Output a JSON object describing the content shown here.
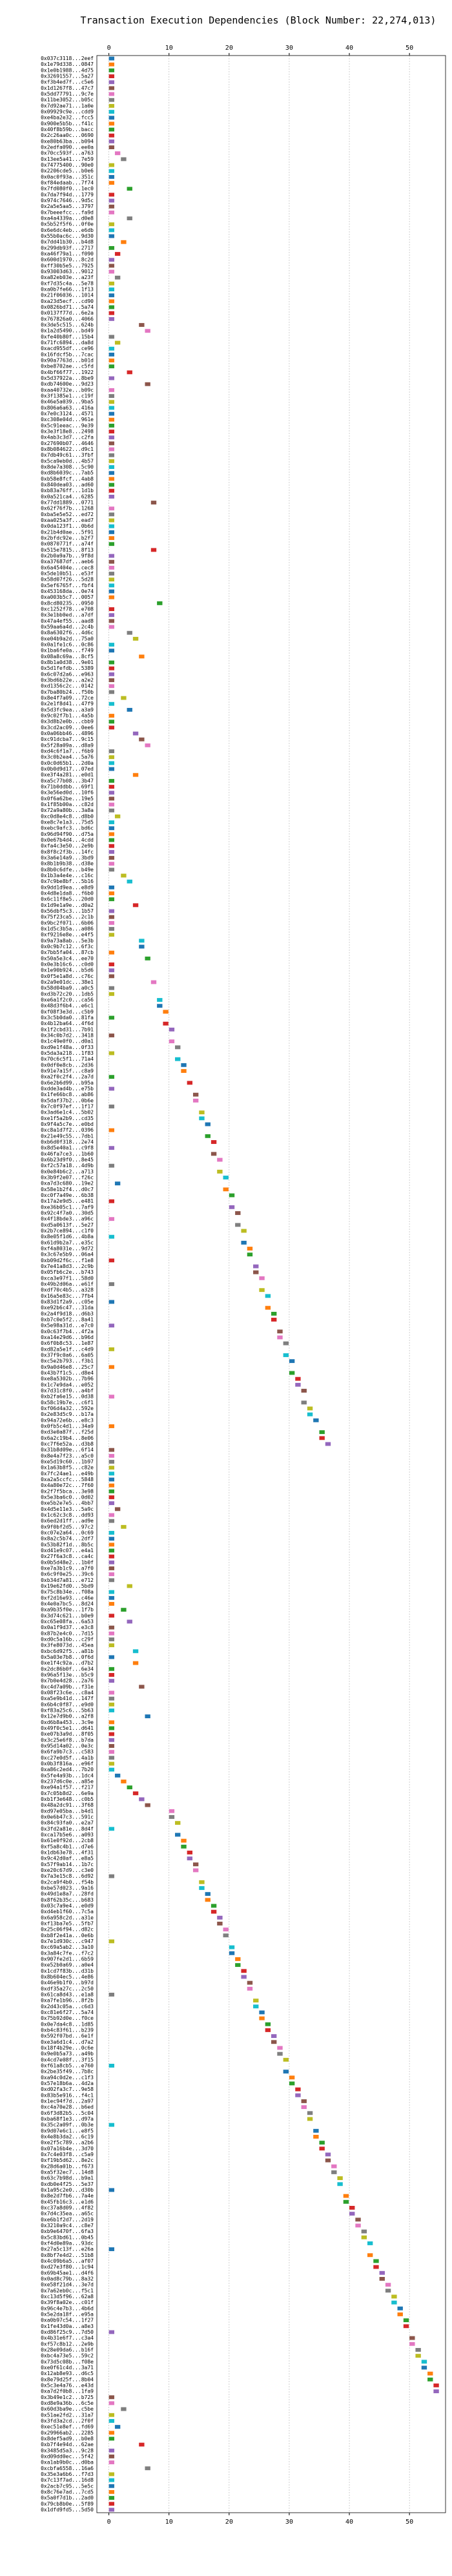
{
  "chart_data": {
    "type": "gantt",
    "title": "Transaction Execution Dependencies (Block Number: 22,274,013)",
    "xlim": [
      -2,
      56
    ],
    "xticks": [
      0,
      10,
      20,
      30,
      40,
      50
    ],
    "grid": true,
    "colors": [
      "#1f77b4",
      "#ff7f0e",
      "#2ca02c",
      "#d62728",
      "#9467bd",
      "#8c564b",
      "#e377c2",
      "#7f7f7f",
      "#bcbd22",
      "#17becf"
    ],
    "categories": [
      "0x037c3118...2eef",
      "0x1e79d338...0847",
      "0x1e0b1988...4d75",
      "0x32691557...5a27",
      "0xf3b4ed7f...c5e6",
      "0x1d1267f8...47c7",
      "0x5dd77791...9c7e",
      "0x11be3052...b05c",
      "0x7d92ae71...1a0e",
      "0x09929c9e...cdd9",
      "0xe4ba2e32...fcc5",
      "0x900e5b5b...f41c",
      "0x40f8b59b...bacc",
      "0x2c26aa0c...0690",
      "0xe80b63ba...b094",
      "0x2edfa090...ee0a",
      "0x70cc593f...a763",
      "0x13ee5a41...7e59",
      "0x74775400...90e0",
      "0x2206cde5...b0e6",
      "0x0ac0f93a...351c",
      "0xf84edaab...7f74",
      "0x7fd080f0...1ec0",
      "0x7da7f94d...1779",
      "0x974c7646...9d5c",
      "0x2a5e5aa5...3797",
      "0x7beeefcc...fa9d",
      "0xa4a4339a...d0e8",
      "0x5b52f5f6...0f0e",
      "0x6e6dc4eb...e6db",
      "0x55b0ac6c...9d30",
      "0x7dd41b30...b4d8",
      "0x299db93f...2717",
      "0xa46f79a1...f090",
      "0x600d1970...8c2d",
      "0xff30b5e5...7925",
      "0x93003d63...9012",
      "0xa82eb03e...a23f",
      "0xf7d35c4a...5e78",
      "0xa0b7fe66...1f13",
      "0x21f06036...1014",
      "0xa23d5ecf...cd90",
      "0x0826bd71...5a74",
      "0x0137f77d...6e2a",
      "0x767826a0...4066",
      "0x3de5c515...624b",
      "0x1a2d5490...bd49",
      "0xfe40b80f...15b4",
      "0x71fc6894...da8d",
      "0xacd955df...ce96",
      "0x16fdcf5b...7cac",
      "0x90a7763d...b01d",
      "0xbe8702ae...c5fd",
      "0x4bf66f77...1922",
      "0x5d37922a...8be9",
      "0xdb74600e...9d23",
      "0xaa40732e...b09c",
      "0x3f1385e1...c19f",
      "0x46e5a039...9ba5",
      "0x806a6a63...416a",
      "0x7e0c3124...4571",
      "0xc308e04d...961e",
      "0x5c91eeac...9e39",
      "0x3e3f18e8...2498",
      "0x4ab3c3d7...c2fa",
      "0x27690b07...4646",
      "0x8b084622...d9c1",
      "0x7db49c61...3fbf",
      "0x5ca9eb0d...4b57",
      "0x8de7a308...5c90",
      "0xd8b6039c...7ab5",
      "0xb58e8fcf...4ab8",
      "0x840dea03...ad60",
      "0xb83a76ff...1d1b",
      "0x0a521ca4...6285",
      "0x77dd1889...0771",
      "0x62f76f7b...1268",
      "0xba5e5e52...ed72",
      "0xaa025a3f...ead7",
      "0x0da123f1...0b6d",
      "0x21b4d0ae...5f91",
      "0x2bfdc92e...b2f7",
      "0x0870771f...a74f",
      "0x515e7815...8f13",
      "0x2b0a9a7b...9f8d",
      "0xa37687df...aeb6",
      "0x6a45404e...cec8",
      "0x5de10b51...e53f",
      "0x58d07f26...5d28",
      "0x5ef6765f...fbf4",
      "0x453168da...0e74",
      "0xa003b5c7...0057",
      "0x8cd80235...0950",
      "0xc1252f78...e708",
      "0x3e1bb0ed...a7df",
      "0x47a4ef55...aad8",
      "0x59aa6a4d...2c4b",
      "0x8a6302f6...4d6c",
      "0xe04b9a2d...75a0",
      "0x0a1fe1c6...0c86",
      "0x1ba6fe0a...f749",
      "0x08a8c69a...8cf5",
      "0x8b1a0d38...9e01",
      "0x5d1fefdb...5389",
      "0x6c07d2a6...e963",
      "0x3bd6b22e...a2e2",
      "0xd1356c2c...0142",
      "0x7ba80b24...f50b",
      "0x8e4f7a09...72ce",
      "0x2e1f8d41...47f9",
      "0x5d3fc9ea...a3a9",
      "0x9c02f7b1...4a5b",
      "0x3d8b2e0b...cbb9",
      "0x3cd2ac09...0ee6",
      "0x0a06bb46...4896",
      "0xc91dcba7...9c15",
      "0x5f28a09a...d8a9",
      "0xd4c6f1a7...f6b9",
      "0x3c0b2ea4...5a76",
      "0x0c0d65b1...2d0a",
      "0x0b0d9d17...07ed",
      "0xe3f4a281...e0d1",
      "0xa5c77b08...3b47",
      "0x71b0ddbb...69f1",
      "0x3e56ed0d...10f6",
      "0x0f6a62be...19e5",
      "0x1f85b00a...c82d",
      "0x72a9a80b...3a8a",
      "0xc0d8e4c8...d8b0",
      "0xe8c7e1a3...75d5",
      "0xebc9afc3...bd6c",
      "0x96d94f90...d75a",
      "0x0e67b4d4...4cdd",
      "0xfa4c3e50...2e9b",
      "0x8f8c2f3b...14fc",
      "0x3a6e14a9...3bd9",
      "0x8b1b9b38...d38e",
      "0x8b0c6dfe...b49e",
      "0x1b3a4e4e...c16c",
      "0x7c9be8bf...5b16",
      "0x9dd1d9ea...e8d9",
      "0x4d8e1da8...f6b0",
      "0x6c11f8e5...20d0",
      "0x1d9e1a9e...d0a2",
      "0x56dbf5c3...1b57",
      "0x75f23ca5...2c1b",
      "0x9bc2f071...6b06",
      "0x1d5c3b5a...a086",
      "0xf9216e8e...e4f5",
      "0x9a73a8ab...5e3b",
      "0x0c9b7c12...6f3c",
      "0x7bb5fa04...87cb",
      "0x50a5e3c4...ee70",
      "0x0e3b16c6...c0d0",
      "0x1e90b924...b5d6",
      "0x0f5e1a8d...c76c",
      "0x2a9e01dc...38e1",
      "0x58d04ba9...a0c5",
      "0xd3b72c20...1db5",
      "0xe6a1f2c0...ca56",
      "0x48d3f6b4...e6c1",
      "0xf08f3e3d...c5b9",
      "0x3c5b0da0...81fa",
      "0x4b12ba64...4f6d",
      "0x1f2cbd31...7b91",
      "0x34c0b7d2...3418",
      "0x1c49e0f0...d0a1",
      "0xd9e1f48a...0f33",
      "0x5da3a218...1f83",
      "0x70c6c5f1...71a4",
      "0x0df0e8cb...2d36",
      "0x91e7a15f...c8a9",
      "0xa2f0c2f4...2a7d",
      "0x6e2b6d99...b95a",
      "0xdde3ad4b...e75b",
      "0x1fe66bc8...ab86",
      "0x5daf37b2...0b6e",
      "0x7c0f97ef...1f17",
      "0x3ad6e1c4...5b02",
      "0xe1f5a2b9...cd35",
      "0x9f4a5c7e...e0bd",
      "0xc8a1d7f2...0396",
      "0x21e49c55...7db1",
      "0xb6d0f318...2e74",
      "0x8d5e40a1...c9f8",
      "0x46fa7ce3...1b60",
      "0x6b23d9f0...8e45",
      "0xf2c57a18...4d9b",
      "0x0e84b6c2...a713",
      "0x3b9f2e07...f26c",
      "0xa7d3c680...19e2",
      "0x58e1b2f4...d0c7",
      "0xc0f7a49e...6b38",
      "0x17a2e9d5...e481",
      "0xe36b05c1...7af9",
      "0x92c4f7a0...30d5",
      "0x4f18bde3...a96c",
      "0xd5a0613f...5e27",
      "0x2b7ce894...c1f0",
      "0x8e05f1d6...4b8a",
      "0x61d9b2a7...e35c",
      "0xf4a8031e...9d72",
      "0x3c67e5b9...06a4",
      "0xb09d2f6c...f1e8",
      "0x7e41a8d3...2c9b",
      "0x05fb6c2e...b743",
      "0xca3e97f1...58d0",
      "0x49b2d06a...e61f",
      "0xdf70c4b5...a328",
      "0x16a5e83c...7fb4",
      "0x83d1f2a9...c05e",
      "0xe92b6c47...31da",
      "0x2a4f9d18...d6b3",
      "0xb7c0e5f2...8a41",
      "0x5e98a31d...e7c0",
      "0x0c63f7b4...4f2a",
      "0xa14e29d6...b96d",
      "0x6f0b8c53...1e87",
      "0xd82a5e1f...c4d9",
      "0x37f9c0a6...6a05",
      "0xc5e2b793...f3b1",
      "0x9a0d46e8...25c7",
      "0x43b7f1c5...d8e4",
      "0xe8a5302b...7b96",
      "0x1c7e9da4...e052",
      "0x7d31c8f0...a4bf",
      "0xb2fa6e15...0d38",
      "0x58c19b7e...c6f1",
      "0xf06d4a32...592e",
      "0x2e83d5c9...b17a",
      "0x94a72e6b...e8c3",
      "0x0fb5c4d1...34a9",
      "0xd3e0a87f...f25d",
      "0x6a2c19b4...8e06",
      "0xc7f6e52a...d3b8",
      "0x31b8d09e...6f14",
      "0x8e4a7f23...a5c0",
      "0xe5d19c60...1b97",
      "0x1a63b8f5...c82e",
      "0x7fc24ae1...e49b",
      "0xa2a5ccfc...5848",
      "0x4a80e72c...7f60",
      "0x2f7f5bca...3e98",
      "0x5e3ba6c0...0d02",
      "0xe5b2e7e5...4bb7",
      "0x4d5e11e3...5a9c",
      "0x1c62c3c8...dd93",
      "0x6ed2d1ff...ad9e",
      "0x9f0bf2d5...97c2",
      "0xc07e2a64...0c69",
      "0x8a2c5b74...2df7",
      "0x53b82f1d...8b5c",
      "0xd41e9c07...e4a1",
      "0x27f6a3c8...ca4c",
      "0x0b5d48e2...1b0f",
      "0xe7a3b1c9...a7f0",
      "0x6c9f0e25...39c6",
      "0xb34d7a81...e712",
      "0x19e62fd0...5bd9",
      "0x75c8b34e...f08a",
      "0xf2d16e93...c46e",
      "0x4e0a7bc5...8d24",
      "0xa9b35f0e...1f7b",
      "0x3d74c621...b0e9",
      "0xc65e08fa...6a53",
      "0x0a1f9d37...e3c8",
      "0x87b2e4c0...7d15",
      "0xd0c5a16b...c29f",
      "0x3fe8073d...45ea",
      "0xbc6d92f5...a81b",
      "0x5a03e7b8...0f6d",
      "0xe1f4c92a...d7b2",
      "0x2dc86b0f...6e34",
      "0x96a5f13e...b5c9",
      "0x7b0e4d28...2a76",
      "0xc4d7a09b...f31e",
      "0x08f23c6e...c8a4",
      "0xa5e9b41d...147f",
      "0x6b4c0f87...e9d0",
      "0xf83a25c6...5b63",
      "0x12e7d9b0...a2f8",
      "0xd6b8a453...3c9e",
      "0x49f0c5e1...d641",
      "0xe07b3a9d...8f05",
      "0x3c25e6f8...b7da",
      "0x95d14a02...0e3c",
      "0x6fa9b7c3...c583",
      "0xc27e0d5f...4a1b",
      "0x0b3f816a...e96f",
      "0xa86c2ed4...7b20",
      "0x5fe4a93b...1dc4",
      "0x237d6c0e...a85e",
      "0xe94a1f57...f217",
      "0x7c05b8d2...6e9a",
      "0xb1f3e648...c0b5",
      "0x48a2dc91...3f68",
      "0xd97e05ba...b4d1",
      "0x0e6b47c3...591c",
      "0x84c93fa0...e2a7",
      "0x3fd2a81e...8d4f",
      "0xca17b5e6...a093",
      "0x61e0f92d...2cb8",
      "0xf5a8c4b1...d7e6",
      "0x1db63e78...4f31",
      "0x9c42d0af...e8a5",
      "0x57f9ab14...1b7c",
      "0xe20c67d9...c3e0",
      "0x7a3e15c8...6d92",
      "0x2ca9f4b0...f54b",
      "0xbe57d023...9a16",
      "0x49d1e8a7...28fd",
      "0x8f62b35c...b683",
      "0x03c7a9e4...e0d9",
      "0xd4eb1f60...7c5a",
      "0x6a958c2d...a31e",
      "0xf13ba7e5...5fb7",
      "0x25c06f94...d82c",
      "0xb8f2e41a...0e6b",
      "0x7e1d930c...c947",
      "0xc69a5ab2...3a10",
      "0x3a84c7fe...f7c2",
      "0x907fe2d1...6b59",
      "0xe52b0a69...a0e4",
      "0x1cd7f83b...d31b",
      "0x8b604ec5...4e86",
      "0x46e9b1f0...b97d",
      "0xdf35a27c...2c50",
      "0x61ca8d43...e1a8",
      "0xa7fe1b96...8f2b",
      "0x2d43c05a...c6d3",
      "0xc81e6f27...5a74",
      "0x75b92d0e...f0ce",
      "0x0e7da4c8...1d85",
      "0xb4c83f61...b239",
      "0x592f07bd...6e1f",
      "0xe3a6d1c4...d7a2",
      "0x18f4b29e...0c6e",
      "0x9e0b5a73...a49b",
      "0x4cd7e08f...3f15",
      "0xf61a8cb5...e760",
      "0x2be35f49...7b8c",
      "0xa94c0d2e...c1f3",
      "0x57e18b6a...4d2a",
      "0xd02fa3c7...9e58",
      "0x83b5e916...f4c1",
      "0x1ec94f7d...2a97",
      "0xc4a70e28...b6ed",
      "0x6f3d82b5...5c04",
      "0xba68f1e3...d97a",
      "0x35c2a09f...0b3e",
      "0x9d07e6c1...e8f5",
      "0x4e8b3da2...6c19",
      "0xe2f5c789...a2b6",
      "0x07a16b4e...3d70",
      "0x7c4e03f8...c5a9",
      "0xf19b5d62...8e2c",
      "0x28d6a01b...f673",
      "0xa5f32ec7...14d8",
      "0x63c7b98d...b9a1",
      "0xdb0e4f25...5e37",
      "0x1a95c2e0...d30b",
      "0x8e2d7fb6...7a4e",
      "0x45fb16c3...e1d6",
      "0xc37a8d09...4f82",
      "0x7d4c35ea...a65c",
      "0xe6b1f2d7...2d19",
      "0x3210a9c4...c8e7",
      "0xb9e6470f...6fa3",
      "0x5c83bd61...0b45",
      "0xf4d0e89a...93dc",
      "0x27a5c13f...e26a",
      "0x8bf7e4d2...51b8",
      "0x4c09b6a5...af07",
      "0xd27e3f80...1c94",
      "0x69b45ae1...d4f6",
      "0x0ad8c79b...8a32",
      "0xe58f21d4...3e7d",
      "0x7a62eb0c...f5c1",
      "0xc13d5f96...62a8",
      "0x39f8a02e...c01f",
      "0x96c4e7b3...4b6d",
      "0x5e2da18f...e95a",
      "0xa0b97c54...1f27",
      "0x1fe43d0a...a8e3",
      "0xd86f25c9...7d50",
      "0x4b31e6f7...c3a4",
      "0xf57c8b12...2e9b",
      "0x28e09da6...b16f",
      "0xbc4a73e5...59c2",
      "0x73d5c08b...f08e",
      "0xe0f61c4d...3a71",
      "0x12ab8e93...d6c5",
      "0x8e79d25f...8b04",
      "0x5c3e4a76...e43d",
      "0xa7d2f0b8...1fa9",
      "0x3b49e1c2...b725",
      "0xd8e9a36b...6c5e",
      "0x60d3ba9e...c5be",
      "0x51ae2fd2...31a7",
      "0x3fd3a2cd...2f0f",
      "0xec51e8ef...fd69",
      "0x29966ab2...2285",
      "0x8def5ad9...b0e8",
      "0xb7f4e94d...62ae",
      "0x3485d5a3...9c28",
      "0xd09dd0ec...5f42",
      "0xa1ab9b0c...d0ba",
      "0xcbfa6558...16a6",
      "0x35e3a6b6...f7d3",
      "0x7c13f7ad...16d8",
      "0x2acb7c95...5e5c",
      "0x8c76e7ad...7cd5",
      "0x5a0f7d1b...2ad0",
      "0x79cb8b0e...5f89",
      "0x1dfd9fd5...5d50"
    ],
    "values": [
      0,
      0,
      0,
      0,
      0,
      0,
      0,
      0,
      0,
      0,
      0,
      0,
      0,
      0,
      0,
      0,
      1,
      2,
      0,
      0,
      0,
      0,
      3,
      0,
      0,
      0,
      0,
      3,
      0,
      0,
      0,
      2,
      0,
      1,
      0,
      0,
      0,
      1,
      0,
      0,
      0,
      0,
      0,
      0,
      0,
      5,
      6,
      0,
      1,
      0,
      0,
      0,
      0,
      3,
      0,
      6,
      0,
      0,
      0,
      0,
      0,
      0,
      0,
      0,
      0,
      0,
      0,
      0,
      0,
      0,
      0,
      0,
      0,
      0,
      0,
      7,
      0,
      0,
      0,
      0,
      0,
      0,
      0,
      7,
      0,
      0,
      0,
      0,
      0,
      0,
      0,
      0,
      8,
      0,
      0,
      0,
      0,
      3,
      4,
      0,
      0,
      5,
      0,
      0,
      0,
      0,
      0,
      0,
      2,
      0,
      3,
      0,
      0,
      0,
      4,
      5,
      6,
      0,
      0,
      0,
      0,
      4,
      0,
      0,
      0,
      0,
      0,
      0,
      1,
      0,
      0,
      0,
      0,
      0,
      0,
      0,
      0,
      0,
      2,
      3,
      0,
      0,
      0,
      4,
      0,
      0,
      0,
      0,
      0,
      5,
      5,
      0,
      6,
      0,
      0,
      0,
      7,
      0,
      0,
      8,
      8,
      9,
      0,
      9,
      10,
      0,
      10,
      11,
      0,
      11,
      12,
      12,
      0,
      13,
      0,
      14,
      14,
      0,
      15,
      15,
      16,
      0,
      16,
      17,
      0,
      17,
      18,
      0,
      18,
      19,
      1,
      19,
      20,
      0,
      20,
      21,
      0,
      21,
      22,
      0,
      22,
      23,
      23,
      0,
      24,
      24,
      25,
      0,
      25,
      26,
      0,
      26,
      27,
      27,
      0,
      28,
      28,
      29,
      0,
      29,
      30,
      0,
      30,
      31,
      31,
      32,
      0,
      32,
      33,
      33,
      34,
      0,
      35,
      35,
      36,
      0,
      0,
      0,
      0,
      0,
      0,
      0,
      0,
      0,
      0,
      1,
      0,
      0,
      2,
      0,
      0,
      0,
      0,
      0,
      0,
      0,
      0,
      0,
      3,
      0,
      0,
      0,
      2,
      0,
      3,
      0,
      0,
      0,
      0,
      4,
      0,
      4,
      0,
      0,
      0,
      5,
      0,
      0,
      0,
      0,
      6,
      0,
      0,
      0,
      0,
      0,
      0,
      0,
      0,
      0,
      1,
      2,
      3,
      4,
      5,
      6,
      10,
      10,
      11,
      0,
      11,
      12,
      12,
      13,
      13,
      14,
      14,
      0,
      15,
      15,
      16,
      16,
      17,
      17,
      18,
      18,
      19,
      19,
      0,
      20,
      20,
      21,
      21,
      22,
      22,
      23,
      23,
      0,
      24,
      24,
      25,
      25,
      26,
      26,
      27,
      27,
      28,
      28,
      29,
      0,
      29,
      30,
      30,
      31,
      31,
      32,
      32,
      33,
      33,
      0,
      34,
      34,
      35,
      35,
      36,
      36,
      37,
      37,
      38,
      38,
      0,
      39,
      39,
      40,
      40,
      41,
      41,
      42,
      42,
      43,
      0,
      43,
      44,
      44,
      45,
      45,
      46,
      46,
      47,
      47,
      48,
      48,
      49,
      49,
      0,
      50,
      50,
      51,
      51,
      52,
      52,
      53,
      53,
      54,
      54,
      0,
      0,
      2,
      0,
      0,
      1,
      0,
      0,
      5,
      0,
      0,
      0,
      6,
      0,
      0,
      0,
      0,
      0,
      0,
      0
    ]
  }
}
